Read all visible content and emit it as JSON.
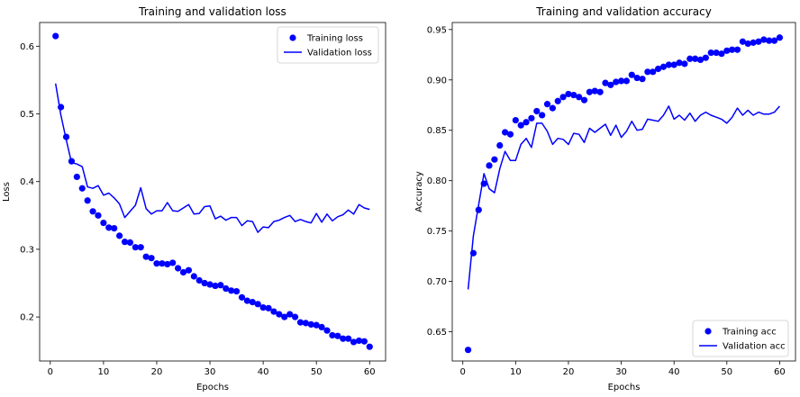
{
  "chart_data": [
    {
      "type": "line",
      "title": "Training and validation loss",
      "xlabel": "Epochs",
      "ylabel": "Loss",
      "xlim": [
        -2,
        63
      ],
      "ylim": [
        0.135,
        0.635
      ],
      "xticks": [
        0,
        10,
        20,
        30,
        40,
        50,
        60
      ],
      "yticks": [
        0.2,
        0.3,
        0.4,
        0.5,
        0.6
      ],
      "legend_position": "upper right",
      "grid": false,
      "series": [
        {
          "name": "Training loss",
          "style": "markers",
          "color": "#0000ff",
          "x": [
            1,
            2,
            3,
            4,
            5,
            6,
            7,
            8,
            9,
            10,
            11,
            12,
            13,
            14,
            15,
            16,
            17,
            18,
            19,
            20,
            21,
            22,
            23,
            24,
            25,
            26,
            27,
            28,
            29,
            30,
            31,
            32,
            33,
            34,
            35,
            36,
            37,
            38,
            39,
            40,
            41,
            42,
            43,
            44,
            45,
            46,
            47,
            48,
            49,
            50,
            51,
            52,
            53,
            54,
            55,
            56,
            57,
            58,
            59,
            60
          ],
          "y": [
            0.615,
            0.51,
            0.466,
            0.43,
            0.407,
            0.39,
            0.372,
            0.356,
            0.35,
            0.339,
            0.332,
            0.331,
            0.32,
            0.311,
            0.31,
            0.303,
            0.303,
            0.289,
            0.287,
            0.279,
            0.279,
            0.278,
            0.28,
            0.272,
            0.266,
            0.269,
            0.26,
            0.254,
            0.25,
            0.248,
            0.246,
            0.247,
            0.242,
            0.239,
            0.238,
            0.229,
            0.224,
            0.222,
            0.219,
            0.214,
            0.213,
            0.208,
            0.204,
            0.2,
            0.204,
            0.2,
            0.192,
            0.191,
            0.189,
            0.188,
            0.185,
            0.18,
            0.173,
            0.172,
            0.168,
            0.168,
            0.163,
            0.165,
            0.164,
            0.156
          ]
        },
        {
          "name": "Validation loss",
          "style": "line",
          "color": "#0000ff",
          "x": [
            1,
            2,
            3,
            4,
            5,
            6,
            7,
            8,
            9,
            10,
            11,
            12,
            13,
            14,
            15,
            16,
            17,
            18,
            19,
            20,
            21,
            22,
            23,
            24,
            25,
            26,
            27,
            28,
            29,
            30,
            31,
            32,
            33,
            34,
            35,
            36,
            37,
            38,
            39,
            40,
            41,
            42,
            43,
            44,
            45,
            46,
            47,
            48,
            49,
            50,
            51,
            52,
            53,
            54,
            55,
            56,
            57,
            58,
            59,
            60
          ],
          "y": [
            0.545,
            0.498,
            0.462,
            0.428,
            0.426,
            0.422,
            0.392,
            0.39,
            0.394,
            0.38,
            0.383,
            0.376,
            0.367,
            0.347,
            0.356,
            0.365,
            0.391,
            0.36,
            0.352,
            0.357,
            0.357,
            0.369,
            0.357,
            0.356,
            0.361,
            0.366,
            0.352,
            0.353,
            0.363,
            0.364,
            0.345,
            0.349,
            0.343,
            0.347,
            0.347,
            0.335,
            0.342,
            0.341,
            0.325,
            0.333,
            0.332,
            0.341,
            0.343,
            0.347,
            0.35,
            0.341,
            0.344,
            0.341,
            0.339,
            0.353,
            0.34,
            0.352,
            0.342,
            0.348,
            0.351,
            0.358,
            0.352,
            0.366,
            0.361,
            0.359
          ]
        }
      ]
    },
    {
      "type": "line",
      "title": "Training and validation accuracy",
      "xlabel": "Epochs",
      "ylabel": "Accuracy",
      "xlim": [
        -2,
        63
      ],
      "ylim": [
        0.621,
        0.957
      ],
      "xticks": [
        0,
        10,
        20,
        30,
        40,
        50,
        60
      ],
      "yticks": [
        0.65,
        0.7,
        0.75,
        0.8,
        0.85,
        0.9,
        0.95
      ],
      "legend_position": "lower right",
      "grid": false,
      "series": [
        {
          "name": "Training acc",
          "style": "markers",
          "color": "#0000ff",
          "x": [
            1,
            2,
            3,
            4,
            5,
            6,
            7,
            8,
            9,
            10,
            11,
            12,
            13,
            14,
            15,
            16,
            17,
            18,
            19,
            20,
            21,
            22,
            23,
            24,
            25,
            26,
            27,
            28,
            29,
            30,
            31,
            32,
            33,
            34,
            35,
            36,
            37,
            38,
            39,
            40,
            41,
            42,
            43,
            44,
            45,
            46,
            47,
            48,
            49,
            50,
            51,
            52,
            53,
            54,
            55,
            56,
            57,
            58,
            59,
            60
          ],
          "y": [
            0.632,
            0.728,
            0.771,
            0.797,
            0.815,
            0.821,
            0.835,
            0.848,
            0.846,
            0.86,
            0.855,
            0.858,
            0.862,
            0.869,
            0.865,
            0.876,
            0.872,
            0.879,
            0.883,
            0.886,
            0.885,
            0.883,
            0.88,
            0.888,
            0.889,
            0.888,
            0.897,
            0.895,
            0.898,
            0.899,
            0.899,
            0.905,
            0.902,
            0.901,
            0.908,
            0.908,
            0.911,
            0.913,
            0.915,
            0.915,
            0.917,
            0.916,
            0.921,
            0.921,
            0.92,
            0.922,
            0.927,
            0.927,
            0.926,
            0.929,
            0.93,
            0.93,
            0.938,
            0.936,
            0.937,
            0.938,
            0.94,
            0.939,
            0.939,
            0.942
          ]
        },
        {
          "name": "Validation acc",
          "style": "line",
          "color": "#0000ff",
          "x": [
            1,
            2,
            3,
            4,
            5,
            6,
            7,
            8,
            9,
            10,
            11,
            12,
            13,
            14,
            15,
            16,
            17,
            18,
            19,
            20,
            21,
            22,
            23,
            24,
            25,
            26,
            27,
            28,
            29,
            30,
            31,
            32,
            33,
            34,
            35,
            36,
            37,
            38,
            39,
            40,
            41,
            42,
            43,
            44,
            45,
            46,
            47,
            48,
            49,
            50,
            51,
            52,
            53,
            54,
            55,
            56,
            57,
            58,
            59,
            60
          ],
          "y": [
            0.692,
            0.745,
            0.776,
            0.807,
            0.792,
            0.788,
            0.812,
            0.829,
            0.82,
            0.82,
            0.836,
            0.842,
            0.833,
            0.857,
            0.857,
            0.849,
            0.836,
            0.842,
            0.841,
            0.836,
            0.847,
            0.846,
            0.838,
            0.852,
            0.848,
            0.852,
            0.856,
            0.845,
            0.855,
            0.843,
            0.849,
            0.859,
            0.85,
            0.851,
            0.861,
            0.86,
            0.859,
            0.865,
            0.874,
            0.861,
            0.865,
            0.86,
            0.867,
            0.859,
            0.865,
            0.868,
            0.865,
            0.863,
            0.861,
            0.857,
            0.863,
            0.872,
            0.865,
            0.87,
            0.865,
            0.868,
            0.866,
            0.866,
            0.868,
            0.874
          ]
        }
      ]
    }
  ]
}
